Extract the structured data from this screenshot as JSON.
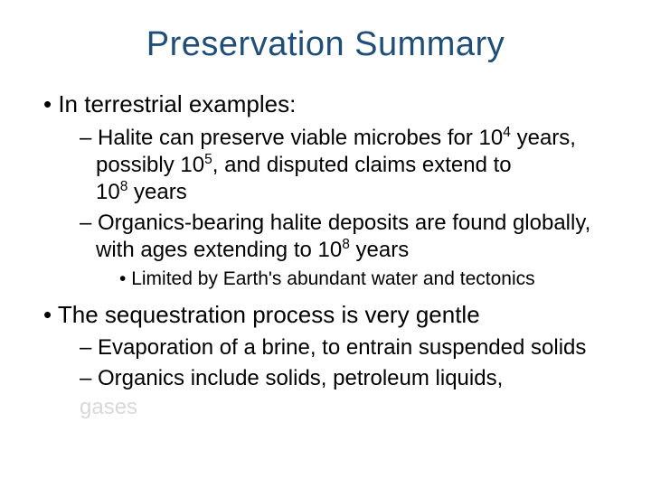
{
  "title": "Preservation Summary",
  "bullets": {
    "l1_a": "In terrestrial examples:",
    "l2_a_pre": "Halite can preserve viable microbes for 10",
    "l2_a_sup1": "4",
    "l2_a_mid1": " years, possibly 10",
    "l2_a_sup2": "5",
    "l2_a_mid2": ", and disputed claims extend to",
    "l2_a_line2_pre": "10",
    "l2_a_line2_sup": "8",
    "l2_a_line2_post": " years",
    "l2_b_pre": "Organics-bearing halite deposits are found globally, with ages extending to 10",
    "l2_b_sup": "8",
    "l2_b_post": " years",
    "l3_a": "Limited by Earth's abundant water and tectonics",
    "l1_b": "The sequestration process is very gentle",
    "l2_c": "Evaporation of a brine, to entrain suspended solids",
    "l2_d": "Organics include solids, petroleum liquids,",
    "l2_d_cut": "gases"
  },
  "colors": {
    "title": "#1f4e79",
    "body": "#000000",
    "background": "#ffffff"
  },
  "typography": {
    "title_fontsize": 38,
    "l1_fontsize": 26,
    "l2_fontsize": 24,
    "l3_fontsize": 21,
    "font_family": "Arial"
  }
}
